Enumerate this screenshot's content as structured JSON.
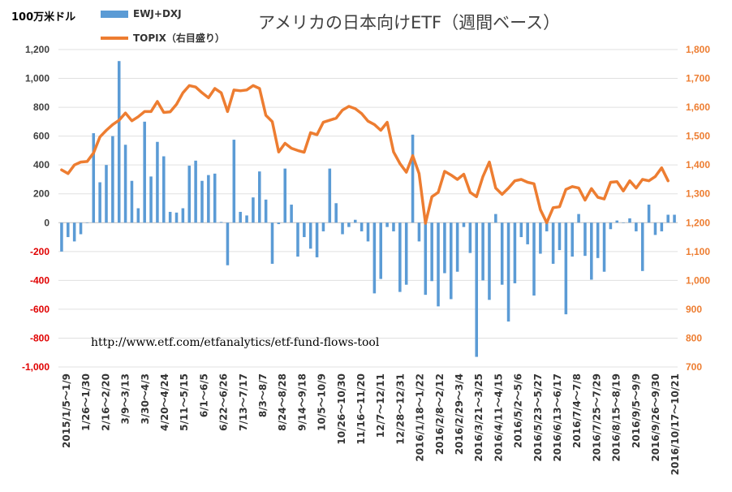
{
  "title": "アメリカの日本向けETF（週間ベース）",
  "unit_label": "100万米ドル",
  "source_url": "http://www.etf.com/etfanalytics/etf-fund-flows-tool",
  "colors": {
    "bars": "#5b9bd5",
    "line": "#ed7d31",
    "left_axis_negative": "#e00000",
    "right_axis": "#ed7d31"
  },
  "chart_data": {
    "type": "bar+line",
    "legend": [
      "EWJ+DXJ",
      "TOPIX（右目盛り）"
    ],
    "left_axis": {
      "min": -1000,
      "max": 1200,
      "step": 200,
      "tick_labels": [
        "-1,000",
        "-800",
        "-600",
        "-400",
        "-200",
        "0",
        "200",
        "400",
        "600",
        "800",
        "1,000",
        "1,200"
      ]
    },
    "right_axis": {
      "min": 700,
      "max": 1800,
      "step": 100,
      "tick_labels": [
        "700",
        "800",
        "900",
        "1,000",
        "1,100",
        "1,200",
        "1,300",
        "1,400",
        "1,500",
        "1,600",
        "1,700",
        "1,800"
      ]
    },
    "x_tick_labels": [
      "2015/1/5～1/9",
      "1/26～1/30",
      "2/16～2/20",
      "3/9～3/13",
      "3/30～4/3",
      "4/20～4/24",
      "5/11～5/15",
      "6/1～6/5",
      "6/22～6/26",
      "7/13～7/17",
      "8/3～8/7",
      "8/24～8/28",
      "9/14～9/18",
      "10/5～10/9",
      "10/26～10/30",
      "11/16～11/20",
      "12/7～12/11",
      "12/28～12/31",
      "2016/1/18～1/22",
      "2016/2/8～2/12",
      "2016/2/29～3/4",
      "2016/3/21～3/25",
      "2016/4/11～4/15",
      "2016/5/2～5/6",
      "2016/5/23～5/27",
      "2016/6/13～6/17",
      "2016/7/4～7/8",
      "2016/7/25～7/29",
      "2016/8/15～8/19",
      "2016/9/5～9/9",
      "2016/9/26～9/30",
      "2016/10/17～10/21"
    ],
    "series": [
      {
        "name": "EWJ+DXJ",
        "type": "bar",
        "axis": "left",
        "values": [
          -200,
          -100,
          -130,
          -80,
          0,
          620,
          280,
          400,
          600,
          1120,
          540,
          290,
          100,
          700,
          320,
          560,
          460,
          75,
          70,
          100,
          395,
          430,
          290,
          330,
          340,
          5,
          -295,
          575,
          75,
          50,
          175,
          355,
          160,
          -285,
          -10,
          375,
          125,
          -235,
          -100,
          -180,
          -240,
          -60,
          375,
          135,
          -80,
          -30,
          20,
          -60,
          -130,
          -490,
          -390,
          -30,
          -60,
          -480,
          -430,
          610,
          -130,
          -500,
          -405,
          -580,
          -350,
          -530,
          -340,
          -30,
          -210,
          -930,
          -400,
          -535,
          60,
          -430,
          -685,
          -420,
          -100,
          -150,
          -505,
          -215,
          -60,
          -285,
          -190,
          -635,
          -235,
          60,
          -230,
          -395,
          -245,
          -340,
          -45,
          15,
          0,
          30,
          -60,
          -335,
          125,
          -85,
          -60,
          55,
          55
        ],
        "x_start": "2015/1/5～1/9"
      },
      {
        "name": "TOPIX（右目盛り）",
        "type": "line",
        "axis": "right",
        "values": [
          1383,
          1370,
          1400,
          1410,
          1412,
          1442,
          1497,
          1520,
          1540,
          1555,
          1580,
          1553,
          1567,
          1585,
          1585,
          1620,
          1582,
          1584,
          1610,
          1650,
          1675,
          1670,
          1650,
          1633,
          1665,
          1650,
          1585,
          1660,
          1657,
          1660,
          1675,
          1665,
          1572,
          1550,
          1445,
          1475,
          1458,
          1450,
          1444,
          1512,
          1505,
          1548,
          1555,
          1562,
          1590,
          1603,
          1595,
          1578,
          1552,
          1540,
          1520,
          1548,
          1445,
          1405,
          1375,
          1432,
          1370,
          1198,
          1290,
          1305,
          1378,
          1365,
          1350,
          1368,
          1305,
          1290,
          1360,
          1410,
          1320,
          1298,
          1320,
          1345,
          1350,
          1340,
          1335,
          1245,
          1200,
          1252,
          1255,
          1315,
          1325,
          1320,
          1278,
          1318,
          1288,
          1282,
          1340,
          1342,
          1310,
          1345,
          1320,
          1350,
          1345,
          1360,
          1390,
          1345
        ],
        "x_start": "2015/1/5～1/9"
      }
    ]
  }
}
